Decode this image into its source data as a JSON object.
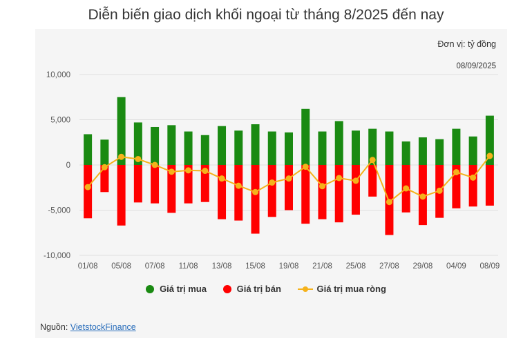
{
  "title": "Diễn biến giao dịch khối ngoại từ tháng 8/2025 đến nay",
  "unit_label": "Đơn vị: tỷ đồng",
  "date_label": "08/09/2025",
  "source_prefix": "Nguồn: ",
  "source_link": "VietstockFinance",
  "colors": {
    "buy": "#1a8a12",
    "sell": "#ff0000",
    "net": "#f5b21b"
  },
  "chart_data": {
    "type": "bar",
    "categories": [
      "01/08",
      "04/08",
      "05/08",
      "06/08",
      "07/08",
      "08/08",
      "11/08",
      "12/08",
      "13/08",
      "14/08",
      "15/08",
      "18/08",
      "19/08",
      "20/08",
      "21/08",
      "22/08",
      "25/08",
      "26/08",
      "27/08",
      "28/08",
      "29/08",
      "03/09",
      "04/09",
      "05/09",
      "08/09"
    ],
    "x_tick_labels": [
      "01/08",
      "05/08",
      "07/08",
      "11/08",
      "13/08",
      "15/08",
      "19/08",
      "21/08",
      "25/08",
      "27/08",
      "29/08",
      "04/09",
      "08/09"
    ],
    "y_tick_labels": [
      "10,000",
      "5,000",
      "0",
      "-5,000",
      "-10,000"
    ],
    "ylim": [
      -10000,
      10000
    ],
    "series": [
      {
        "name": "Giá trị mua",
        "kind": "bar",
        "values": [
          3400,
          2800,
          7500,
          4700,
          4200,
          4400,
          3700,
          3300,
          4300,
          3800,
          4500,
          3700,
          3600,
          6200,
          3700,
          4850,
          3800,
          4000,
          3700,
          2600,
          3050,
          2850,
          4000,
          3150,
          5450
        ]
      },
      {
        "name": "Giá trị bán",
        "kind": "bar",
        "values": [
          -5900,
          -3000,
          -6700,
          -4150,
          -4250,
          -5300,
          -4250,
          -4100,
          -6000,
          -6150,
          -7600,
          -5750,
          -5000,
          -6500,
          -6000,
          -6350,
          -5500,
          -3500,
          -7750,
          -5250,
          -6650,
          -5850,
          -4800,
          -4600,
          -4500
        ]
      },
      {
        "name": "Giá trị mua ròng",
        "kind": "line",
        "values": [
          -2450,
          -250,
          900,
          650,
          0,
          -750,
          -600,
          -650,
          -1500,
          -2300,
          -3000,
          -1950,
          -1500,
          -200,
          -2350,
          -1450,
          -1750,
          550,
          -4100,
          -2600,
          -3500,
          -2850,
          -800,
          -1400,
          1000
        ]
      }
    ],
    "grid": true,
    "legend_position": "bottom"
  }
}
